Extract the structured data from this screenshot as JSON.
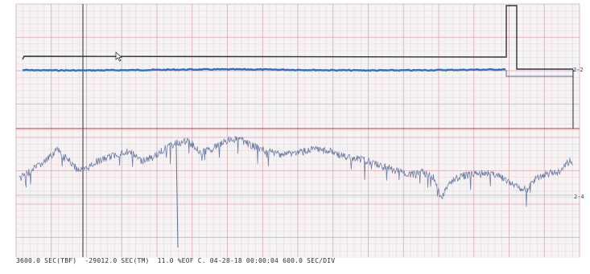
{
  "status_bar": {
    "text": "3600.0 SEC(TBF)  -29012.0 SEC(TM)  11.0 %EOF C. 04-28-18 00:00:04 600.0 SEC/DIV"
  },
  "upper_panel": {
    "right_label": "2-2"
  },
  "lower_panel": {
    "right_label": "2-4"
  },
  "colors": {
    "background": "#f6f3f4",
    "major_grid": "#d9a9b2",
    "minor_grid": "#ebd1d6",
    "divider": "#c55a64",
    "trace_dark": "#2d3440",
    "trace_blue": "#2e6fc0",
    "trace_noise": "#6f7fa8",
    "cursor": "#4a4f5c"
  }
}
